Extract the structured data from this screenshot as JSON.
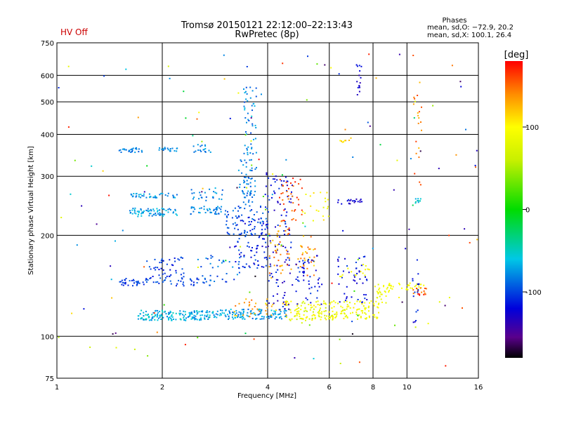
{
  "status_label": "HV Off",
  "status_color": "#cc0000",
  "title": "Tromsø 20150121 22:12:00–22:13:43",
  "subtitle": "RwPretec (8p)",
  "phases_box": {
    "heading": "Phases",
    "line_o": "mean, sd,O: −72.9, 20.2",
    "line_x": "mean, sd,X: 100.1, 26.4"
  },
  "chart_data": {
    "type": "scatter",
    "title": "Tromsø 20150121 22:12:00–22:13:43",
    "subtitle": "RwPretec (8p)",
    "xlabel": "Frequency [MHz]",
    "ylabel": "Stationary phase Virtual Height [km]",
    "x_scale": "log",
    "y_scale": "log",
    "xlim": [
      1,
      16
    ],
    "ylim": [
      75,
      750
    ],
    "x_ticks": [
      1,
      2,
      4,
      6,
      8,
      10,
      16
    ],
    "x_tick_labels": [
      "1",
      "2",
      "4",
      "6",
      "8",
      "10",
      "16"
    ],
    "y_ticks": [
      75,
      100,
      200,
      300,
      400,
      500,
      600,
      750
    ],
    "y_tick_labels": [
      "75",
      "100",
      "200",
      "300",
      "400",
      "500",
      "600",
      "750"
    ],
    "grid": true,
    "colorbar": {
      "label": "[deg]",
      "range": [
        -180,
        180
      ],
      "ticks": [
        100,
        0,
        -100
      ],
      "tick_labels": [
        "100",
        "0",
        "-100"
      ],
      "stops": [
        {
          "v": -180,
          "c": "#000000"
        },
        {
          "v": -155,
          "c": "#5a008c"
        },
        {
          "v": -120,
          "c": "#0000dc"
        },
        {
          "v": -60,
          "c": "#00c8e6"
        },
        {
          "v": 0,
          "c": "#00dc00"
        },
        {
          "v": 60,
          "c": "#c8f000"
        },
        {
          "v": 100,
          "c": "#ffff00"
        },
        {
          "v": 140,
          "c": "#ff8c00"
        },
        {
          "v": 180,
          "c": "#ff0000"
        }
      ]
    },
    "clusters": [
      {
        "x": [
          1.7,
          2.8
        ],
        "y": [
          112,
          120
        ],
        "phase": [
          -85,
          -45
        ],
        "n": 160
      },
      {
        "x": [
          2.8,
          4.5
        ],
        "y": [
          113,
          121
        ],
        "phase": [
          -95,
          -55
        ],
        "n": 120
      },
      {
        "x": [
          3.2,
          4.5
        ],
        "y": [
          115,
          130
        ],
        "phase": [
          110,
          150
        ],
        "n": 35
      },
      {
        "x": [
          4.5,
          6.2
        ],
        "y": [
          112,
          128
        ],
        "phase": [
          60,
          110
        ],
        "n": 110
      },
      {
        "x": [
          6.0,
          8.3
        ],
        "y": [
          113,
          128
        ],
        "phase": [
          75,
          110
        ],
        "n": 90
      },
      {
        "x": [
          8.0,
          9.0
        ],
        "y": [
          125,
          145
        ],
        "phase": [
          75,
          105
        ],
        "n": 30
      },
      {
        "x": [
          8.8,
          11.5
        ],
        "y": [
          138,
          145
        ],
        "phase": [
          80,
          105
        ],
        "n": 30
      },
      {
        "x": [
          10.2,
          11.5
        ],
        "y": [
          132,
          140
        ],
        "phase": [
          140,
          180
        ],
        "n": 15
      },
      {
        "x": [
          1.5,
          2.8
        ],
        "y": [
          142,
          150
        ],
        "phase": [
          -115,
          -90
        ],
        "n": 70
      },
      {
        "x": [
          1.8,
          2.3
        ],
        "y": [
          150,
          175
        ],
        "phase": [
          -120,
          -90
        ],
        "n": 45
      },
      {
        "x": [
          2.5,
          3.4
        ],
        "y": [
          145,
          175
        ],
        "phase": [
          -110,
          -70
        ],
        "n": 40
      },
      {
        "x": [
          3.2,
          4.0
        ],
        "y": [
          160,
          230
        ],
        "phase": [
          -130,
          -90
        ],
        "n": 90
      },
      {
        "x": [
          3.9,
          4.7
        ],
        "y": [
          120,
          310
        ],
        "phase": [
          -140,
          -100
        ],
        "n": 110
      },
      {
        "x": [
          4.0,
          5.5
        ],
        "y": [
          150,
          210
        ],
        "phase": [
          110,
          160
        ],
        "n": 70
      },
      {
        "x": [
          4.3,
          5.0
        ],
        "y": [
          210,
          300
        ],
        "phase": [
          140,
          175
        ],
        "n": 40
      },
      {
        "x": [
          4.8,
          5.7
        ],
        "y": [
          125,
          175
        ],
        "phase": [
          -130,
          -100
        ],
        "n": 50
      },
      {
        "x": [
          5.0,
          6.0
        ],
        "y": [
          220,
          280
        ],
        "phase": [
          80,
          120
        ],
        "n": 20
      },
      {
        "x": [
          6.3,
          7.8
        ],
        "y": [
          125,
          175
        ],
        "phase": [
          -130,
          -100
        ],
        "n": 45
      },
      {
        "x": [
          6.3,
          7.8
        ],
        "y": [
          150,
          165
        ],
        "phase": [
          85,
          110
        ],
        "n": 15
      },
      {
        "x": [
          1.6,
          2.2
        ],
        "y": [
          228,
          242
        ],
        "phase": [
          -90,
          -55
        ],
        "n": 70
      },
      {
        "x": [
          1.6,
          2.2
        ],
        "y": [
          260,
          268
        ],
        "phase": [
          -90,
          -55
        ],
        "n": 40
      },
      {
        "x": [
          2.4,
          3.0
        ],
        "y": [
          232,
          245
        ],
        "phase": [
          -95,
          -65
        ],
        "n": 40
      },
      {
        "x": [
          2.4,
          3.2
        ],
        "y": [
          255,
          280
        ],
        "phase": [
          -95,
          -65
        ],
        "n": 25
      },
      {
        "x": [
          3.0,
          4.0
        ],
        "y": [
          200,
          250
        ],
        "phase": [
          -110,
          -80
        ],
        "n": 60
      },
      {
        "x": [
          3.3,
          3.7
        ],
        "y": [
          250,
          380
        ],
        "phase": [
          -100,
          -70
        ],
        "n": 70
      },
      {
        "x": [
          3.4,
          3.7
        ],
        "y": [
          380,
          560
        ],
        "phase": [
          -100,
          -60
        ],
        "n": 35
      },
      {
        "x": [
          1.5,
          1.75
        ],
        "y": [
          355,
          368
        ],
        "phase": [
          -95,
          -70
        ],
        "n": 25
      },
      {
        "x": [
          1.95,
          2.2
        ],
        "y": [
          358,
          368
        ],
        "phase": [
          -90,
          -70
        ],
        "n": 18
      },
      {
        "x": [
          2.4,
          2.8
        ],
        "y": [
          355,
          375
        ],
        "phase": [
          -90,
          -60
        ],
        "n": 18
      },
      {
        "x": [
          6.3,
          7.4
        ],
        "y": [
          248,
          258
        ],
        "phase": [
          -140,
          -110
        ],
        "n": 20
      },
      {
        "x": [
          6.4,
          6.9
        ],
        "y": [
          380,
          392
        ],
        "phase": [
          100,
          130
        ],
        "n": 8
      },
      {
        "x": [
          7.1,
          7.4
        ],
        "y": [
          480,
          650
        ],
        "phase": [
          -140,
          -110
        ],
        "n": 15
      },
      {
        "x": [
          10.4,
          10.9
        ],
        "y": [
          250,
          260
        ],
        "phase": [
          -80,
          -40
        ],
        "n": 10
      },
      {
        "x": [
          10.4,
          11.0
        ],
        "y": [
          280,
          600
        ],
        "phase": [
          120,
          170
        ],
        "n": 20
      },
      {
        "x": [
          10.3,
          10.8
        ],
        "y": [
          110,
          160
        ],
        "phase": [
          -130,
          -100
        ],
        "n": 15
      },
      {
        "x": [
          1.0,
          16.0
        ],
        "y": [
          80,
          700
        ],
        "phase": [
          -180,
          180
        ],
        "n": 150
      }
    ]
  }
}
